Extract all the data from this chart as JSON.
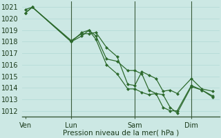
{
  "xlabel": "Pression niveau de la mer( hPa )",
  "ylim": [
    1011.5,
    1021.5
  ],
  "yticks": [
    1012,
    1013,
    1014,
    1015,
    1016,
    1017,
    1018,
    1019,
    1020,
    1021
  ],
  "xlim": [
    0,
    56
  ],
  "xtick_positions": [
    1,
    14,
    32,
    48
  ],
  "xtick_labels": [
    "Ven",
    "Lun",
    "Sam",
    "Dim"
  ],
  "vline_x": [
    14,
    32,
    48
  ],
  "bg_color": "#cce8e4",
  "grid_color": "#b8ddd9",
  "line_color": "#2d6a2d",
  "line1_x": [
    1,
    3,
    14,
    17,
    19,
    21,
    24,
    27,
    30,
    32,
    34,
    36,
    38,
    40,
    42,
    44,
    48,
    51,
    54
  ],
  "line1_y": [
    1020.8,
    1021.0,
    1018.0,
    1018.5,
    1019.0,
    1018.5,
    1016.5,
    1016.3,
    1015.5,
    1015.5,
    1015.2,
    1013.8,
    1013.5,
    1013.4,
    1012.3,
    1011.8,
    1014.1,
    1013.8,
    1013.2
  ],
  "line2_x": [
    1,
    3,
    14,
    17,
    19,
    21,
    24,
    27,
    30,
    32,
    34,
    36,
    38,
    40,
    42,
    44,
    48,
    51,
    54
  ],
  "line2_y": [
    1020.5,
    1021.0,
    1018.1,
    1018.7,
    1018.7,
    1018.8,
    1017.5,
    1016.7,
    1014.3,
    1014.2,
    1015.4,
    1015.1,
    1014.8,
    1013.7,
    1013.8,
    1013.5,
    1014.8,
    1013.9,
    1013.7
  ],
  "line3_x": [
    1,
    3,
    14,
    17,
    19,
    21,
    24,
    27,
    30,
    32,
    34,
    36,
    38,
    40,
    42,
    44,
    48,
    51,
    54
  ],
  "line3_y": [
    1020.5,
    1021.0,
    1018.0,
    1018.8,
    1019.0,
    1018.2,
    1016.0,
    1015.2,
    1013.9,
    1013.9,
    1013.6,
    1013.4,
    1013.5,
    1012.3,
    1012.0,
    1012.0,
    1014.2,
    1013.8,
    1013.3
  ],
  "marker": "D",
  "markersize": 2.5,
  "linewidth": 0.9
}
